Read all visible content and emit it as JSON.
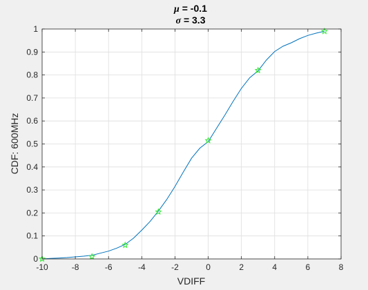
{
  "chart_data": {
    "type": "line",
    "title": {
      "line1_symbol": "μ",
      "line1_text": " = -0.1",
      "line2_symbol": "σ",
      "line2_text": " = 3.3"
    },
    "xlabel": "VDIFF",
    "ylabel": "CDF: 600MHz",
    "xlim": [
      -10,
      8
    ],
    "ylim": [
      0,
      1
    ],
    "xticks": [
      -10,
      -8,
      -6,
      -4,
      -2,
      0,
      2,
      4,
      6,
      8
    ],
    "yticks": [
      0,
      0.1,
      0.2,
      0.3,
      0.4,
      0.5,
      0.6,
      0.7,
      0.8,
      0.9,
      1
    ],
    "xtick_labels": [
      "-10",
      "-8",
      "-6",
      "-4",
      "-2",
      "0",
      "2",
      "4",
      "6",
      "8"
    ],
    "ytick_labels": [
      "0",
      "0.1",
      "0.2",
      "0.3",
      "0.4",
      "0.5",
      "0.6",
      "0.7",
      "0.8",
      "0.9",
      "1"
    ],
    "grid": true,
    "series": [
      {
        "kind": "line",
        "color": "#0072bd",
        "x": [
          -10,
          -9.5,
          -9,
          -8.5,
          -8,
          -7.5,
          -7,
          -6.5,
          -6,
          -5.5,
          -5,
          -4.5,
          -4,
          -3.5,
          -3,
          -2.5,
          -2,
          -1.5,
          -1,
          -0.5,
          0,
          0.5,
          1,
          1.5,
          2,
          2.5,
          3,
          3.5,
          4,
          4.5,
          5,
          5.5,
          6,
          6.5,
          7
        ],
        "y": [
          0.0,
          0.002,
          0.004,
          0.006,
          0.009,
          0.012,
          0.016,
          0.025,
          0.034,
          0.047,
          0.063,
          0.09,
          0.125,
          0.163,
          0.208,
          0.258,
          0.315,
          0.378,
          0.438,
          0.482,
          0.51,
          0.568,
          0.625,
          0.685,
          0.742,
          0.788,
          0.818,
          0.865,
          0.902,
          0.925,
          0.94,
          0.958,
          0.972,
          0.982,
          0.99
        ]
      },
      {
        "kind": "marker",
        "marker": "star",
        "color": "#2ee82e",
        "x": [
          -10,
          -7,
          -5,
          -3,
          0,
          3,
          7
        ],
        "y": [
          0.0,
          0.01,
          0.06,
          0.205,
          0.515,
          0.82,
          0.99
        ]
      }
    ]
  }
}
